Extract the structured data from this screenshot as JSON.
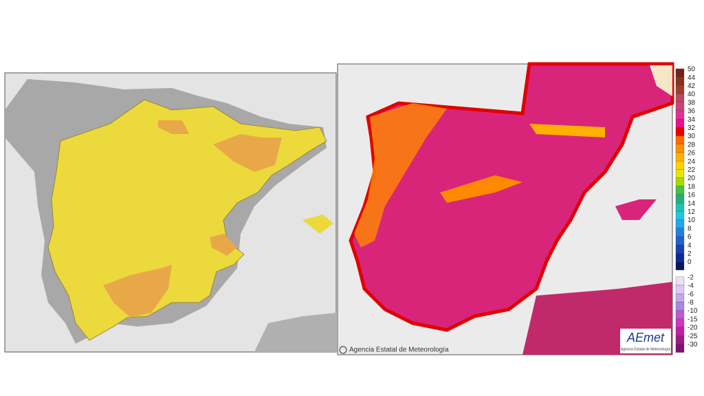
{
  "right_map": {
    "legend": {
      "labels": [
        50,
        44,
        42,
        40,
        38,
        36,
        34,
        32,
        30,
        28,
        26,
        24,
        22,
        20,
        18,
        16,
        14,
        12,
        10,
        8,
        6,
        4,
        2,
        0,
        -2,
        -4,
        -6,
        -8,
        -10,
        -15,
        -20,
        -25,
        -30
      ],
      "colors": [
        "#6e2418",
        "#863222",
        "#9c3e2e",
        "#b64a5e",
        "#d0407c",
        "#e23096",
        "#e8108a",
        "#e80000",
        "#ff6a00",
        "#ff9000",
        "#ffb000",
        "#ffd200",
        "#e6e600",
        "#a8d800",
        "#48c040",
        "#20b080",
        "#20c0b0",
        "#20c8e0",
        "#20a8e8",
        "#2080e0",
        "#2060d0",
        "#1840b0",
        "#102890",
        "#081860",
        "#ece0f8",
        "#dcc8f2",
        "#c4a8ea",
        "#a888e0",
        "#c058d4",
        "#d034c4",
        "#c020a4",
        "#a01884",
        "#801070"
      ]
    },
    "credit": "Agencia Estatal de Meteorología",
    "logo": {
      "text": "AEmet",
      "subtitle": "Agencia Estatal de Meteorología"
    }
  }
}
